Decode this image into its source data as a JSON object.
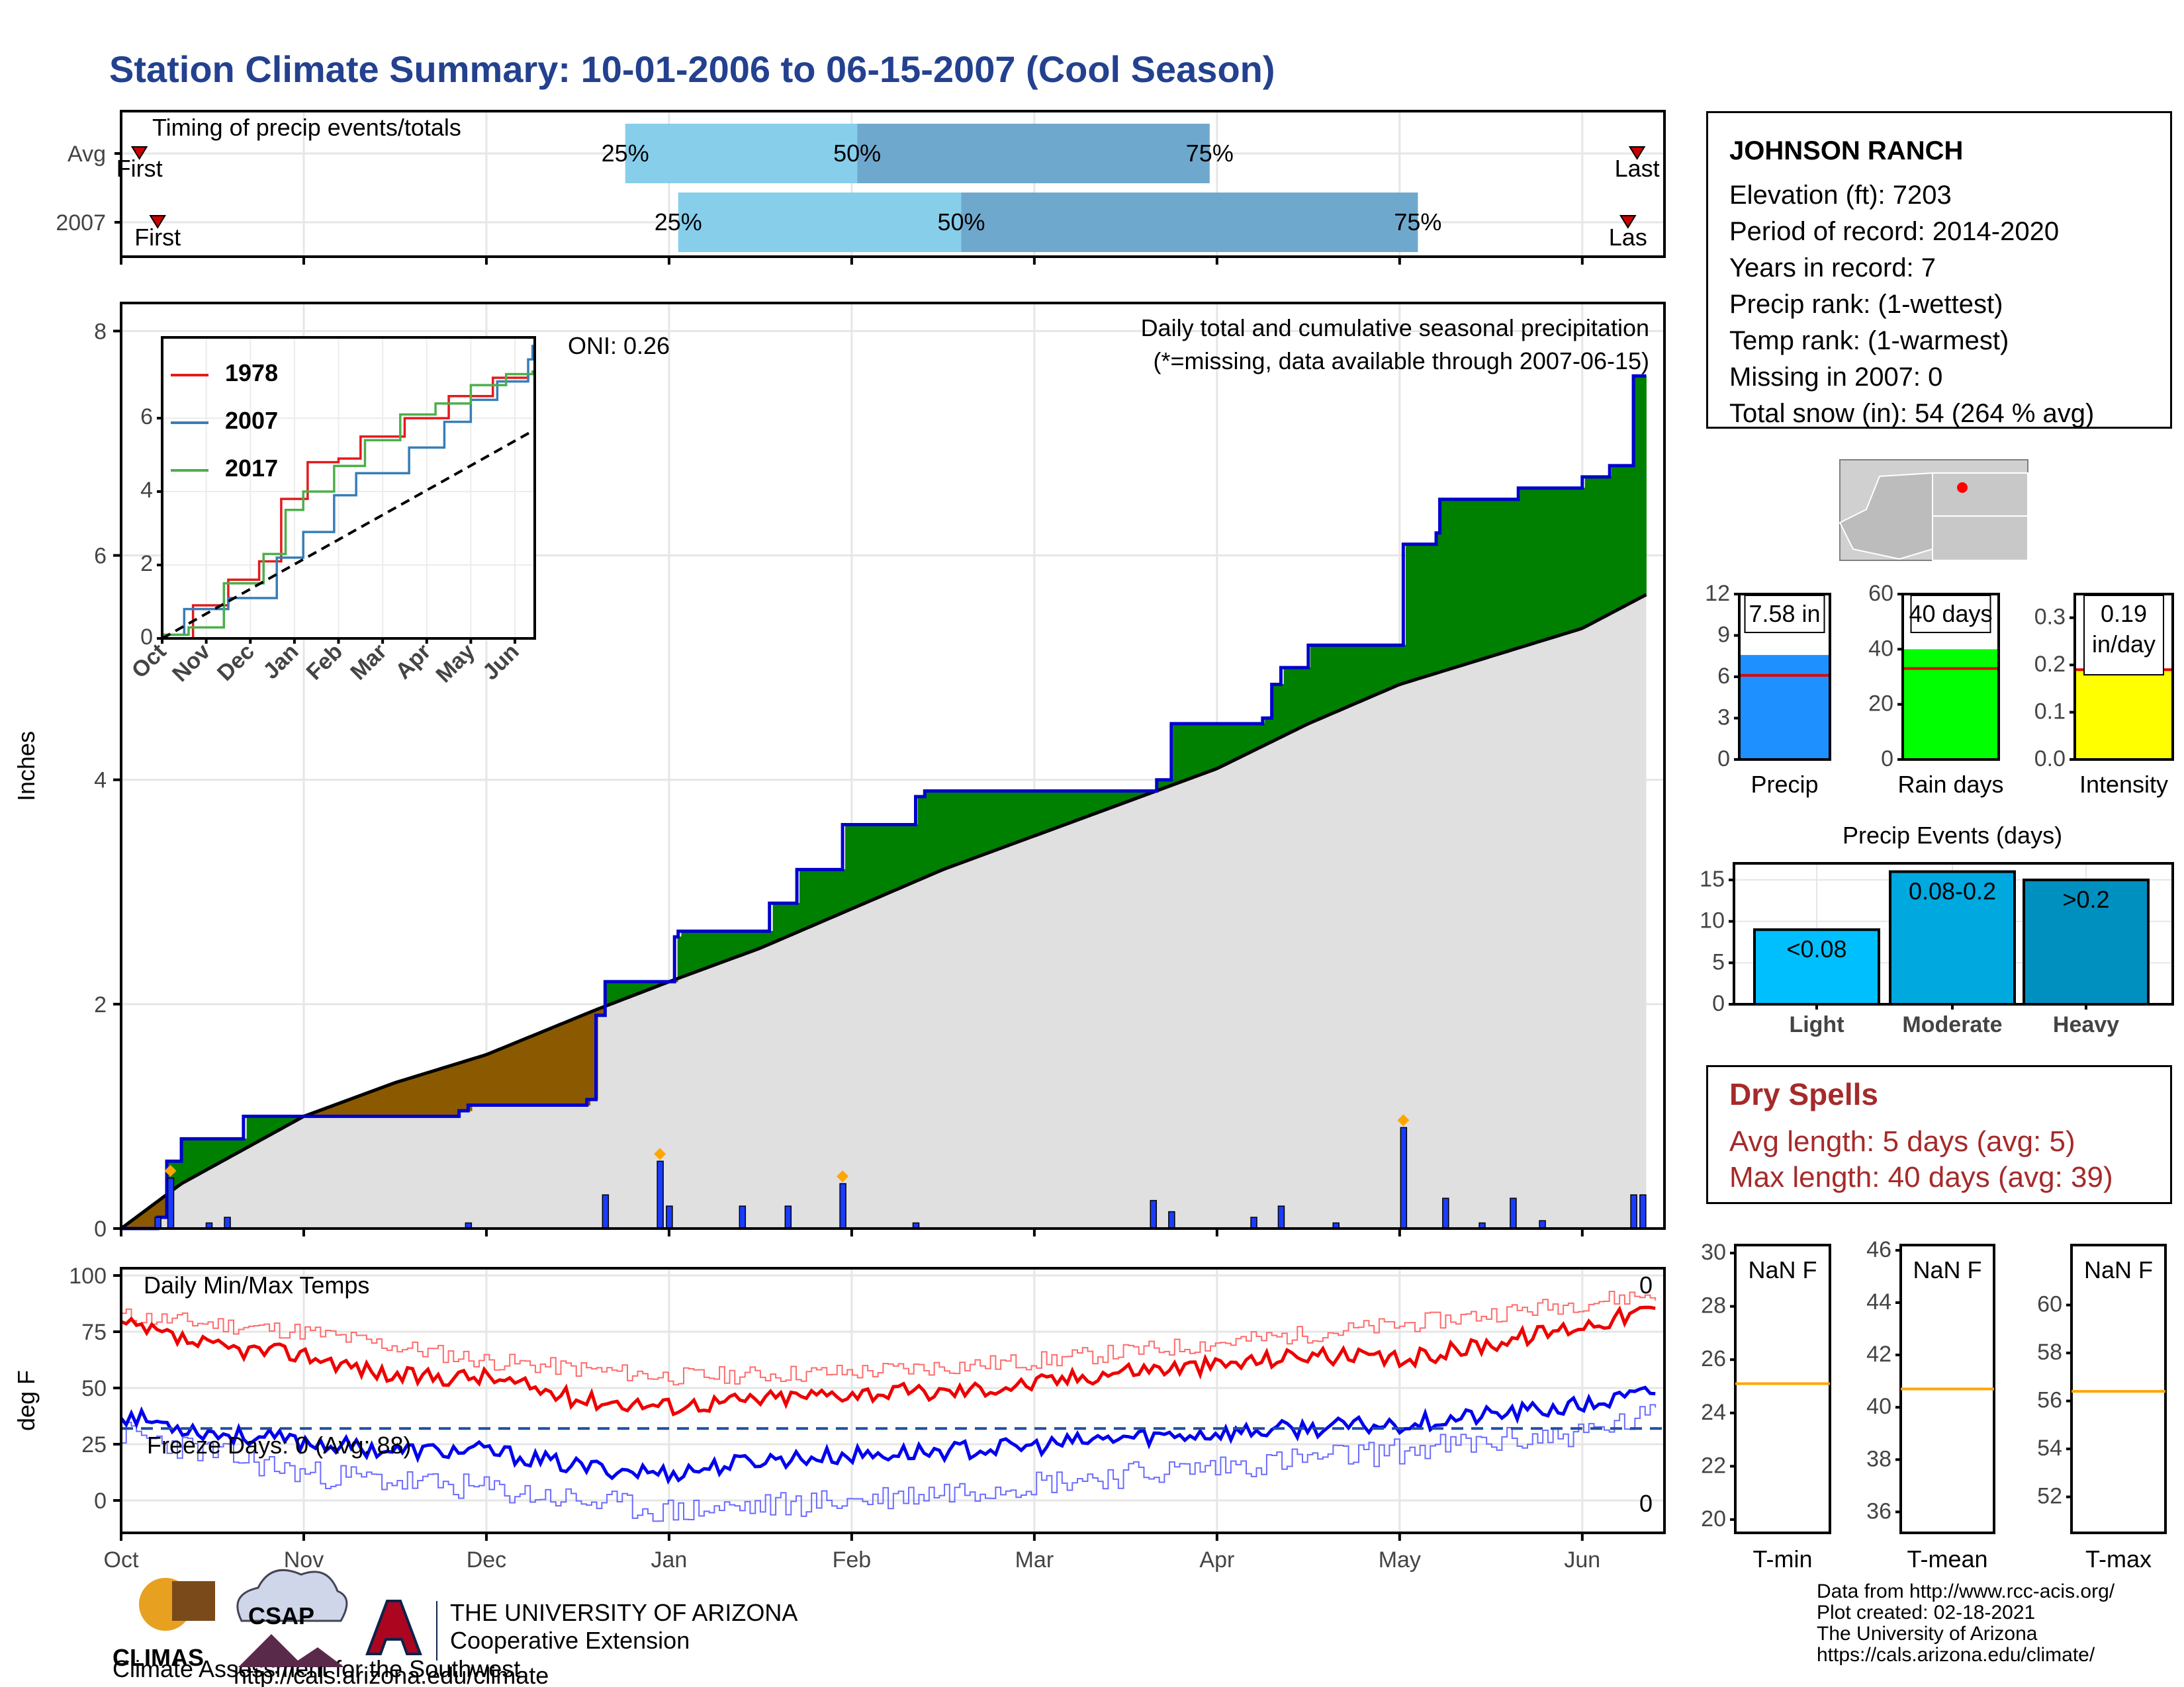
{
  "title": "Station Climate Summary: 10-01-2006 to 06-15-2007 (Cool Season)",
  "timing": {
    "label": "Timing of precip events/totals",
    "rows": [
      {
        "name": "Avg",
        "first_label": "First",
        "last_label": "Last",
        "first": 0.1,
        "q25": 2.76,
        "q50": 4.03,
        "q75": 5.96,
        "last": 8.3
      },
      {
        "name": "2007",
        "first_label": "First",
        "last_label": "Las",
        "first": 0.2,
        "q25": 3.05,
        "q50": 4.6,
        "q75": 7.1,
        "last": 8.25
      }
    ],
    "pct_labels": [
      "25%",
      "50%",
      "75%"
    ],
    "colors": {
      "light": "#87ceeb",
      "mid": "#6fa8cd",
      "marker": "#cc0000"
    }
  },
  "main": {
    "ylabel": "Inches",
    "annotation_title": "Daily total and cumulative seasonal precipitation",
    "annotation_missing": "(*=missing, data available through 2007-06-15)",
    "oni": "ONI: 0.26",
    "yticks": [
      "0",
      "2",
      "4",
      "6",
      "8"
    ],
    "xticks": [
      "Oct",
      "Nov",
      "Dec",
      "Jan",
      "Feb",
      "Mar",
      "Apr",
      "May",
      "Jun"
    ],
    "colors": {
      "above": "#008000",
      "below": "#8b5a00",
      "avg_fill": "#e0e0e0",
      "line": "#0000cc",
      "bars": "#1a3cff",
      "marker": "#ffa500"
    }
  },
  "chart_data": {
    "type": "area",
    "x_unit": "month",
    "ylim": [
      0,
      8
    ],
    "cumulative_2007": [
      [
        0.0,
        0.0
      ],
      [
        0.2,
        0.1
      ],
      [
        0.25,
        0.6
      ],
      [
        0.33,
        0.8
      ],
      [
        0.5,
        0.8
      ],
      [
        0.67,
        1.0
      ],
      [
        1.0,
        1.0
      ],
      [
        1.5,
        1.0
      ],
      [
        1.85,
        1.05
      ],
      [
        1.9,
        1.1
      ],
      [
        2.2,
        1.1
      ],
      [
        2.55,
        1.15
      ],
      [
        2.6,
        1.9
      ],
      [
        2.65,
        2.2
      ],
      [
        3.0,
        2.2
      ],
      [
        3.03,
        2.6
      ],
      [
        3.05,
        2.65
      ],
      [
        3.33,
        2.65
      ],
      [
        3.55,
        2.9
      ],
      [
        3.65,
        2.9
      ],
      [
        3.7,
        3.2
      ],
      [
        3.9,
        3.2
      ],
      [
        3.95,
        3.6
      ],
      [
        4.3,
        3.6
      ],
      [
        4.35,
        3.85
      ],
      [
        4.4,
        3.9
      ],
      [
        5.05,
        3.9
      ],
      [
        5.6,
        3.9
      ],
      [
        5.67,
        4.0
      ],
      [
        5.75,
        4.5
      ],
      [
        6.2,
        4.5
      ],
      [
        6.25,
        4.55
      ],
      [
        6.3,
        4.85
      ],
      [
        6.35,
        5.0
      ],
      [
        6.5,
        5.2
      ],
      [
        7.0,
        5.2
      ],
      [
        7.02,
        6.1
      ],
      [
        7.2,
        6.2
      ],
      [
        7.22,
        6.5
      ],
      [
        7.5,
        6.5
      ],
      [
        7.65,
        6.6
      ],
      [
        8.0,
        6.7
      ],
      [
        8.15,
        6.8
      ],
      [
        8.25,
        6.8
      ],
      [
        8.28,
        7.6
      ],
      [
        8.35,
        7.6
      ]
    ],
    "cumulative_avg": [
      [
        0.0,
        0.0
      ],
      [
        0.33,
        0.4
      ],
      [
        1.0,
        1.0
      ],
      [
        1.5,
        1.3
      ],
      [
        2.0,
        1.55
      ],
      [
        2.6,
        1.95
      ],
      [
        3.0,
        2.2
      ],
      [
        3.5,
        2.5
      ],
      [
        4.0,
        2.85
      ],
      [
        4.5,
        3.2
      ],
      [
        5.0,
        3.5
      ],
      [
        5.5,
        3.8
      ],
      [
        6.0,
        4.1
      ],
      [
        6.5,
        4.5
      ],
      [
        7.0,
        4.85
      ],
      [
        7.5,
        5.1
      ],
      [
        8.0,
        5.35
      ],
      [
        8.35,
        5.65
      ]
    ],
    "daily_precip": [
      [
        0.2,
        0.1
      ],
      [
        0.27,
        0.45
      ],
      [
        0.48,
        0.05
      ],
      [
        0.58,
        0.1
      ],
      [
        1.9,
        0.05
      ],
      [
        2.65,
        0.3
      ],
      [
        2.95,
        0.6
      ],
      [
        3.0,
        0.2
      ],
      [
        3.4,
        0.2
      ],
      [
        3.65,
        0.2
      ],
      [
        3.95,
        0.4
      ],
      [
        4.35,
        0.05
      ],
      [
        5.65,
        0.25
      ],
      [
        5.75,
        0.15
      ],
      [
        6.2,
        0.1
      ],
      [
        6.35,
        0.2
      ],
      [
        6.65,
        0.05
      ],
      [
        7.02,
        0.9
      ],
      [
        7.25,
        0.27
      ],
      [
        7.45,
        0.05
      ],
      [
        7.62,
        0.27
      ],
      [
        7.78,
        0.07
      ],
      [
        8.28,
        0.3
      ],
      [
        8.33,
        0.3
      ]
    ],
    "inset": {
      "type": "line",
      "ylim": [
        0,
        8
      ],
      "xticks": [
        "Oct",
        "Nov",
        "Dec",
        "Jan",
        "Feb",
        "Mar",
        "Apr",
        "May",
        "Jun"
      ],
      "yticks": [
        "0",
        "2",
        "4",
        "6"
      ],
      "series": [
        {
          "name": "1978",
          "color": "#e41a1c",
          "values": [
            [
              0,
              0
            ],
            [
              0.7,
              0.9
            ],
            [
              1.5,
              1.6
            ],
            [
              2.2,
              2.1
            ],
            [
              2.7,
              3.8
            ],
            [
              3.3,
              4.8
            ],
            [
              4.0,
              4.9
            ],
            [
              4.5,
              5.5
            ],
            [
              5.5,
              6.0
            ],
            [
              6.5,
              6.6
            ],
            [
              7.5,
              7.1
            ],
            [
              8.3,
              7.2
            ]
          ]
        },
        {
          "name": "2007",
          "color": "#377eb8",
          "values": [
            [
              0,
              0.1
            ],
            [
              0.5,
              0.8
            ],
            [
              1.5,
              1.1
            ],
            [
              2.6,
              2.2
            ],
            [
              3.2,
              2.9
            ],
            [
              3.9,
              3.9
            ],
            [
              4.4,
              4.5
            ],
            [
              5.6,
              5.2
            ],
            [
              6.4,
              5.9
            ],
            [
              7.0,
              6.5
            ],
            [
              7.6,
              7.0
            ],
            [
              8.3,
              7.6
            ],
            [
              8.4,
              8.0
            ]
          ]
        },
        {
          "name": "2017",
          "color": "#4daf4a",
          "values": [
            [
              0,
              0.1
            ],
            [
              0.6,
              0.3
            ],
            [
              1.4,
              1.5
            ],
            [
              2.3,
              2.3
            ],
            [
              2.8,
              3.5
            ],
            [
              3.2,
              4.0
            ],
            [
              3.9,
              4.7
            ],
            [
              4.6,
              5.4
            ],
            [
              5.4,
              6.1
            ],
            [
              6.2,
              6.4
            ],
            [
              7.0,
              6.9
            ],
            [
              7.8,
              7.2
            ],
            [
              8.4,
              7.3
            ]
          ]
        },
        {
          "values": [
            [
              0,
              0
            ],
            [
              8.4,
              5.65
            ]
          ],
          "color": "#000000"
        }
      ]
    },
    "temps": {
      "title": "Daily Min/Max Temps",
      "ylabel": "deg F",
      "yticks": [
        "0",
        "25",
        "50",
        "75",
        "100"
      ],
      "freeze_label": "Freeze Days: 0 (Avg: 88)",
      "freeze_line": 32,
      "count_high": "0",
      "count_low": "0",
      "tmax_2007": [
        [
          0,
          78
        ],
        [
          0.5,
          68
        ],
        [
          1.0,
          65
        ],
        [
          1.5,
          55
        ],
        [
          2.0,
          55
        ],
        [
          2.5,
          45
        ],
        [
          3.0,
          42
        ],
        [
          3.5,
          45
        ],
        [
          4.0,
          48
        ],
        [
          4.5,
          48
        ],
        [
          5.0,
          52
        ],
        [
          5.5,
          58
        ],
        [
          6.0,
          60
        ],
        [
          6.5,
          65
        ],
        [
          7.0,
          62
        ],
        [
          7.5,
          70
        ],
        [
          8.0,
          78
        ],
        [
          8.4,
          85
        ]
      ],
      "tmin_2007": [
        [
          0,
          38
        ],
        [
          0.5,
          30
        ],
        [
          1.0,
          26
        ],
        [
          1.5,
          22
        ],
        [
          2.0,
          22
        ],
        [
          2.5,
          15
        ],
        [
          3.0,
          12
        ],
        [
          3.5,
          18
        ],
        [
          4.0,
          20
        ],
        [
          4.5,
          22
        ],
        [
          5.0,
          24
        ],
        [
          5.5,
          28
        ],
        [
          6.0,
          30
        ],
        [
          6.5,
          32
        ],
        [
          7.0,
          34
        ],
        [
          7.5,
          38
        ],
        [
          8.0,
          42
        ],
        [
          8.4,
          48
        ]
      ],
      "tmax_record": [
        [
          0,
          82
        ],
        [
          1.0,
          75
        ],
        [
          2.0,
          62
        ],
        [
          3.0,
          55
        ],
        [
          4.0,
          57
        ],
        [
          5.0,
          62
        ],
        [
          6.0,
          70
        ],
        [
          7.0,
          78
        ],
        [
          8.0,
          88
        ],
        [
          8.4,
          92
        ]
      ],
      "tmin_record": [
        [
          0,
          30
        ],
        [
          1.0,
          12
        ],
        [
          2.0,
          5
        ],
        [
          3.0,
          -5
        ],
        [
          4.0,
          0
        ],
        [
          5.0,
          8
        ],
        [
          6.0,
          15
        ],
        [
          7.0,
          22
        ],
        [
          8.0,
          30
        ],
        [
          8.4,
          38
        ]
      ]
    },
    "summary_bars": [
      {
        "name": "Precip",
        "label": "7.58 in",
        "value": 7.58,
        "avg": 6.1,
        "ylim": [
          0,
          12
        ],
        "yticks": [
          "0",
          "3",
          "6",
          "9",
          "12"
        ],
        "color": "#1e90ff"
      },
      {
        "name": "Rain days",
        "label": "40 days",
        "value": 40,
        "avg": 33,
        "ylim": [
          0,
          60
        ],
        "yticks": [
          "0",
          "20",
          "40",
          "60"
        ],
        "color": "#00ff00"
      },
      {
        "name": "Intensity",
        "label": "0.19 in/day",
        "label_line1": "0.19",
        "label_line2": "in/day",
        "value": 0.19,
        "avg": 0.19,
        "ylim": [
          0,
          0.35
        ],
        "yticks": [
          "0.0",
          "0.1",
          "0.2",
          "0.3"
        ],
        "color": "#ffff00"
      }
    ],
    "events": {
      "title": "Precip Events (days)",
      "ylim": [
        0,
        17
      ],
      "yticks": [
        "0",
        "5",
        "10",
        "15"
      ],
      "categories": [
        "Light",
        "Moderate",
        "Heavy"
      ],
      "bar_labels": [
        "<0.08",
        "0.08-0.2",
        ">0.2"
      ],
      "values": [
        9,
        16,
        15
      ],
      "colors": [
        "#00bfff",
        "#00a8e0",
        "#0090c0"
      ]
    },
    "temp_summary": [
      {
        "name": "T-min",
        "label": "NaN F",
        "avg": 25.1,
        "ylim": [
          19.5,
          30.3
        ],
        "yticks": [
          "20",
          "22",
          "24",
          "26",
          "28",
          "30"
        ]
      },
      {
        "name": "T-mean",
        "label": "NaN F",
        "avg": 40.7,
        "ylim": [
          35.2,
          46.2
        ],
        "yticks": [
          "36",
          "38",
          "40",
          "42",
          "44",
          "46"
        ]
      },
      {
        "name": "T-max",
        "label": "NaN F",
        "avg": 56.4,
        "ylim": [
          50.5,
          62.5
        ],
        "yticks": [
          "52",
          "54",
          "56",
          "58",
          "60"
        ]
      }
    ]
  },
  "station": {
    "name": "JOHNSON RANCH",
    "lines": [
      "Elevation (ft): 7203",
      "Period of record: 2014-2020",
      "Years in record: 7",
      "Precip rank:  (1-wettest)",
      "Temp rank:  (1-warmest)",
      "Missing in 2007: 0",
      "Total snow (in): 54 (264 % avg)"
    ]
  },
  "dry_spells": {
    "title": "Dry Spells",
    "avg_line": "Avg length: 5 days (avg: 5)",
    "max_line": "Max length: 40 days (avg: 39)"
  },
  "credits": [
    "Data from http://www.rcc-acis.org/",
    "Plot created: 02-18-2021",
    "The University of Arizona",
    "https://cals.arizona.edu/climate/"
  ],
  "logos": {
    "climas": "CLIMAS",
    "climas_sub": "Climate Assessment for the Southwest",
    "csap": "CSAP",
    "csap_url": "http://cals.arizona.edu/climate",
    "ua_small": "THE UNIVERSITY OF ARIZONA",
    "ua_big": "Cooperative Extension"
  }
}
